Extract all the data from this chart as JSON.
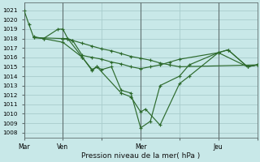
{
  "title": "Pression niveau de la mer( hPa )",
  "bg_color": "#c8e8e8",
  "grid_color": "#a8cccc",
  "line_color": "#2d6a2d",
  "ylim": [
    1007.5,
    1021.8
  ],
  "yticks": [
    1008,
    1009,
    1010,
    1011,
    1012,
    1013,
    1014,
    1015,
    1016,
    1017,
    1018,
    1019,
    1020,
    1021
  ],
  "xlim": [
    0,
    48
  ],
  "xtick_labels": [
    "Mar",
    "Ven",
    "",
    "Mer",
    "",
    "Jeu",
    ""
  ],
  "xtick_positions": [
    0,
    8,
    16,
    24,
    32,
    40,
    48
  ],
  "vlines": [
    0,
    8,
    24,
    40
  ],
  "series": [
    {
      "x": [
        0,
        1,
        2,
        8,
        9,
        10,
        12,
        14,
        16,
        18,
        20,
        22,
        24,
        26,
        28,
        30,
        32,
        48
      ],
      "y": [
        1021,
        1019.5,
        1018.1,
        1018.0,
        1018.0,
        1017.8,
        1017.5,
        1017.2,
        1016.9,
        1016.7,
        1016.4,
        1016.1,
        1015.9,
        1015.7,
        1015.4,
        1015.2,
        1015.0,
        1015.2
      ]
    },
    {
      "x": [
        2,
        4,
        7,
        8,
        9,
        12,
        14,
        15,
        16,
        18,
        20,
        22,
        24,
        26,
        28,
        32,
        34,
        40,
        42,
        46,
        48
      ],
      "y": [
        1018.2,
        1018.0,
        1019.0,
        1019.0,
        1018.0,
        1016.0,
        1014.6,
        1015.0,
        1014.7,
        1015.0,
        1012.5,
        1012.2,
        1008.5,
        1009.2,
        1013.0,
        1014.0,
        1015.2,
        1016.5,
        1016.8,
        1015.0,
        1015.2
      ]
    },
    {
      "x": [
        2,
        4,
        8,
        12,
        14,
        15,
        20,
        22,
        24,
        25,
        28,
        32,
        34,
        40,
        42,
        46,
        48
      ],
      "y": [
        1018.1,
        1018.0,
        1017.6,
        1016.0,
        1014.7,
        1015.0,
        1012.2,
        1011.8,
        1010.2,
        1010.5,
        1008.8,
        1013.2,
        1014.0,
        1016.5,
        1016.8,
        1015.0,
        1015.2
      ]
    },
    {
      "x": [
        8,
        10,
        12,
        14,
        16,
        18,
        20,
        22,
        24,
        26,
        28,
        30,
        32,
        40,
        46,
        48
      ],
      "y": [
        1018.0,
        1017.8,
        1016.2,
        1016.0,
        1015.8,
        1015.5,
        1015.3,
        1015.0,
        1014.8,
        1015.0,
        1015.2,
        1015.5,
        1015.8,
        1016.5,
        1015.0,
        1015.2
      ]
    }
  ]
}
